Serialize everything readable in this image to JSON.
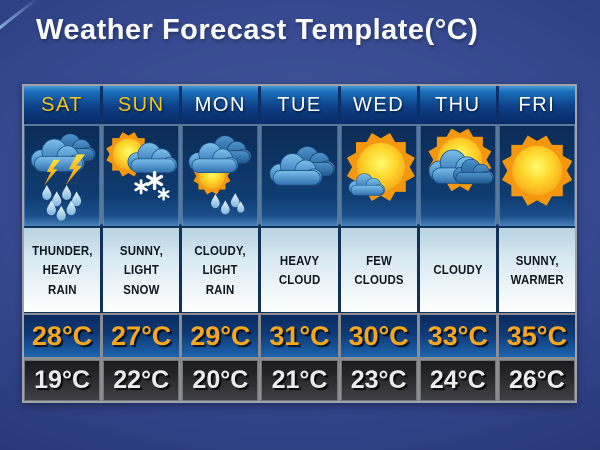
{
  "slide": {
    "title": "Weather Forecast Template(°C)"
  },
  "forecast": {
    "days": [
      {
        "name": "SAT",
        "weekend": true,
        "icon": "thunder-heavy-rain",
        "description_lines": [
          "THUNDER,",
          "HEAVY",
          "RAIN"
        ],
        "high": "28°C",
        "low": "19°C"
      },
      {
        "name": "SUN",
        "weekend": true,
        "icon": "sunny-light-snow",
        "description_lines": [
          "SUNNY,",
          "LIGHT",
          "SNOW"
        ],
        "high": "27°C",
        "low": "22°C"
      },
      {
        "name": "MON",
        "weekend": false,
        "icon": "cloudy-light-rain",
        "description_lines": [
          "CLOUDY,",
          "LIGHT RAIN"
        ],
        "high": "29°C",
        "low": "20°C"
      },
      {
        "name": "TUE",
        "weekend": false,
        "icon": "heavy-cloud",
        "description_lines": [
          "HEAVY",
          "CLOUD"
        ],
        "high": "31°C",
        "low": "21°C"
      },
      {
        "name": "WED",
        "weekend": false,
        "icon": "few-clouds",
        "description_lines": [
          "FEW",
          "CLOUDS"
        ],
        "high": "30°C",
        "low": "23°C"
      },
      {
        "name": "THU",
        "weekend": false,
        "icon": "cloudy",
        "description_lines": [
          "CLOUDY"
        ],
        "high": "33°C",
        "low": "24°C"
      },
      {
        "name": "FRI",
        "weekend": false,
        "icon": "sunny-warmer",
        "description_lines": [
          "SUNNY,",
          "WARMER"
        ],
        "high": "35°C",
        "low": "26°C"
      }
    ],
    "colors": {
      "weekend_day_label": "#f2c41d",
      "weekday_day_label": "#ffffff",
      "high_temp_text": "#f7a71d",
      "low_temp_text": "#ebebed",
      "header_blue": "#1a70bc",
      "icon_panel_navy": "#0f3d72",
      "slide_background_blue": "#35488f"
    }
  }
}
